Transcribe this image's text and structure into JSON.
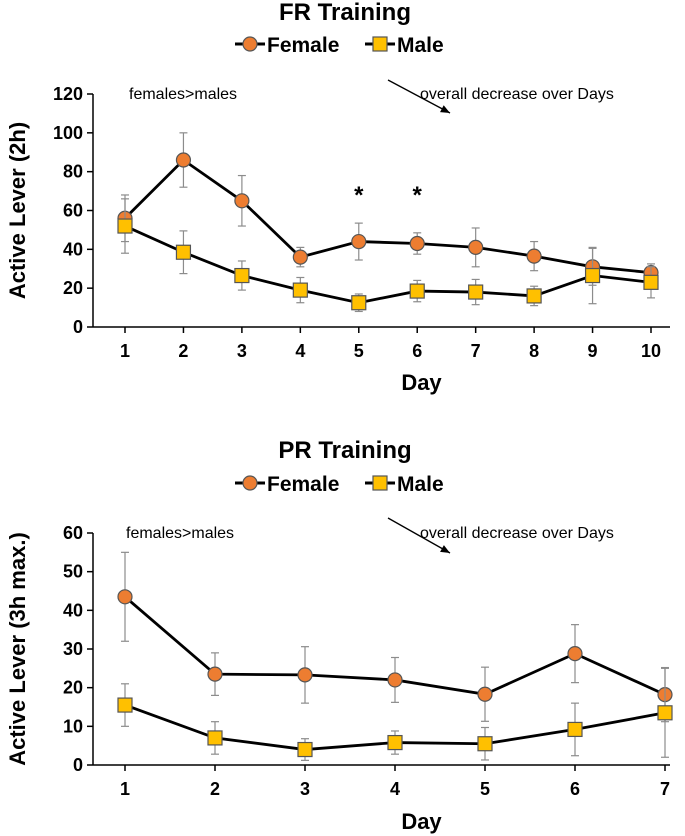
{
  "chart_data": [
    {
      "type": "line",
      "title": "FR Training",
      "xlabel": "Day",
      "ylabel": "Active Lever (2h)",
      "x": [
        1,
        2,
        3,
        4,
        5,
        6,
        7,
        8,
        9,
        10
      ],
      "x_tick_labels": [
        "1",
        "2",
        "3",
        "4",
        "5",
        "6",
        "7",
        "8",
        "9",
        "10"
      ],
      "ylim": [
        0,
        120
      ],
      "y_ticks": [
        0,
        20,
        40,
        60,
        80,
        100,
        120
      ],
      "y_tick_labels": [
        "0",
        "20",
        "40",
        "60",
        "80",
        "100",
        "120"
      ],
      "legend": [
        "Female",
        "Male"
      ],
      "series": [
        {
          "name": "Female",
          "marker": "circle",
          "color": "#ED7D31",
          "values": [
            56,
            86,
            65,
            36,
            44,
            43,
            41,
            36.5,
            31,
            28
          ],
          "errors": [
            12,
            14,
            13,
            5,
            9.5,
            5.5,
            10,
            7.5,
            9.5,
            4.5
          ]
        },
        {
          "name": "Male",
          "marker": "square",
          "color": "#FFC000",
          "values": [
            52,
            38.5,
            26.5,
            19,
            12.5,
            18.5,
            18,
            16,
            26.5,
            23
          ],
          "errors": [
            14,
            11,
            7.5,
            6.5,
            4.5,
            5.5,
            6.5,
            5,
            14.5,
            8
          ]
        }
      ],
      "annotations": [
        {
          "text": "females>males"
        },
        {
          "text": "overall decrease over Days"
        }
      ],
      "significance": [
        {
          "x": 5,
          "text": "*"
        },
        {
          "x": 6,
          "text": "*"
        }
      ]
    },
    {
      "type": "line",
      "title": "PR Training",
      "xlabel": "Day",
      "ylabel": "Active Lever (3h max.)",
      "x": [
        1,
        2,
        3,
        4,
        5,
        6,
        7
      ],
      "x_tick_labels": [
        "1",
        "2",
        "3",
        "4",
        "5",
        "6",
        "7"
      ],
      "ylim": [
        0,
        60
      ],
      "y_ticks": [
        0,
        10,
        20,
        30,
        40,
        50,
        60
      ],
      "y_tick_labels": [
        "0",
        "10",
        "20",
        "30",
        "40",
        "50",
        "60"
      ],
      "legend": [
        "Female",
        "Male"
      ],
      "series": [
        {
          "name": "Female",
          "marker": "circle",
          "color": "#ED7D31",
          "values": [
            43.5,
            23.5,
            23.3,
            22,
            18.3,
            28.8,
            18.2
          ],
          "errors": [
            11.5,
            5.5,
            7.3,
            5.8,
            7,
            7.5,
            7
          ]
        },
        {
          "name": "Male",
          "marker": "square",
          "color": "#FFC000",
          "values": [
            15.5,
            7,
            4,
            5.8,
            5.5,
            9.2,
            13.5
          ],
          "errors": [
            5.5,
            4.2,
            2.8,
            3,
            4.2,
            6.8,
            11.5
          ]
        }
      ],
      "annotations": [
        {
          "text": "females>males"
        },
        {
          "text": "overall decrease over Days"
        }
      ],
      "significance": []
    }
  ]
}
